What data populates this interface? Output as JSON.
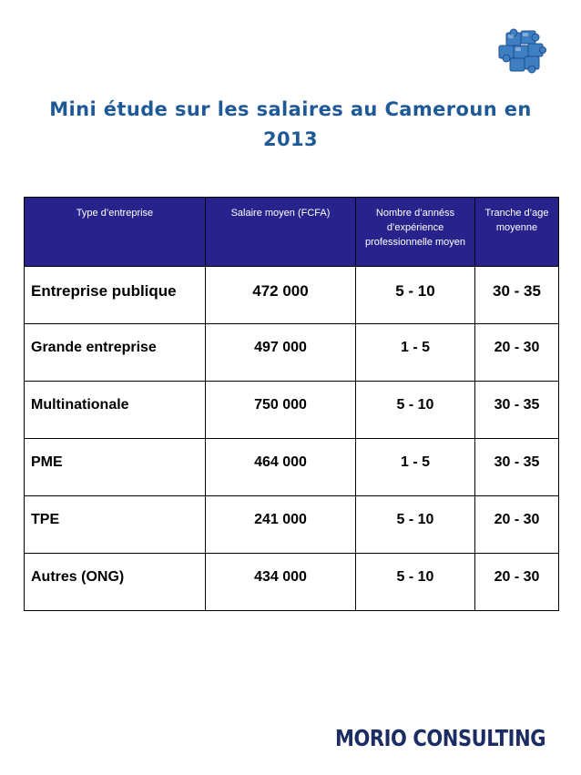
{
  "title": "Mini étude sur les salaires au Cameroun en 2013",
  "logo_icon": "puzzle-pieces-icon",
  "table": {
    "headers": {
      "type": "Type d’entreprise",
      "salary": "Salaire moyen (FCFA)",
      "experience": "Nombre d’annéss d’expérience professionnelle moyen",
      "age": "Tranche d’age moyenne"
    },
    "rows": [
      {
        "type": "Entreprise publique",
        "salary": "472 000",
        "experience": "5 - 10",
        "age": "30 - 35"
      },
      {
        "type": "Grande entreprise",
        "salary": "497 000",
        "experience": "1 - 5",
        "age": "20 - 30"
      },
      {
        "type": "Multinationale",
        "salary": "750 000",
        "experience": "5 - 10",
        "age": "30 - 35"
      },
      {
        "type": "PME",
        "salary": "464 000",
        "experience": "1 - 5",
        "age": "30 - 35"
      },
      {
        "type": "TPE",
        "salary": "241 000",
        "experience": "5 - 10",
        "age": "20 - 30"
      },
      {
        "type": "Autres (ONG)",
        "salary": "434 000",
        "experience": "5 - 10",
        "age": "20 - 30"
      }
    ]
  },
  "footer_logo": "MORIO CONSULTING",
  "colors": {
    "title": "#1f5a97",
    "header_bg": "#28238c",
    "header_text": "#ffffff",
    "logo": "#1c2d64"
  }
}
